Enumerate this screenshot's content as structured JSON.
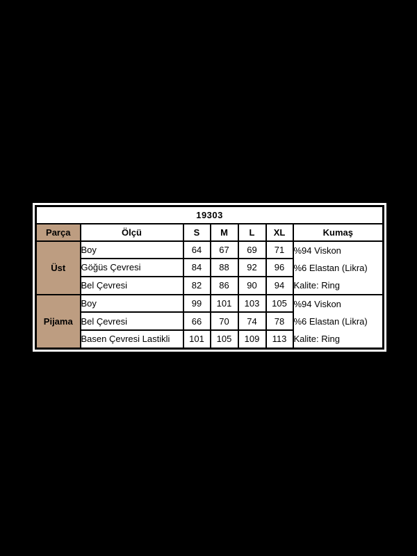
{
  "page": {
    "background": "#000000"
  },
  "frame": {
    "background": "#ffffff"
  },
  "colors": {
    "header_bg": "#bd9d81",
    "cell_bg": "#ffffff",
    "border": "#000000",
    "text": "#000000"
  },
  "chart_data": {
    "type": "table",
    "title": "19303",
    "header": {
      "part": "Parça",
      "measure": "Ölçü",
      "sizes": [
        "S",
        "M",
        "L",
        "XL"
      ],
      "fabric": "Kumaş"
    },
    "sections": [
      {
        "name": "Üst",
        "rows": [
          {
            "label": "Boy",
            "values": [
              "64",
              "67",
              "69",
              "71"
            ]
          },
          {
            "label": "Göğüs Çevresi",
            "values": [
              "84",
              "88",
              "92",
              "96"
            ]
          },
          {
            "label": "Bel Çevresi",
            "values": [
              "82",
              "86",
              "90",
              "94"
            ]
          }
        ],
        "fabric_lines": [
          "%94 Viskon",
          "%6 Elastan (Likra)",
          "Kalite: Ring"
        ]
      },
      {
        "name": "Pijama",
        "rows": [
          {
            "label": "Boy",
            "values": [
              "99",
              "101",
              "103",
              "105"
            ]
          },
          {
            "label": "Bel Çevresi",
            "values": [
              "66",
              "70",
              "74",
              "78"
            ]
          },
          {
            "label": "Basen Çevresi Lastikli",
            "values": [
              "101",
              "105",
              "109",
              "113"
            ]
          }
        ],
        "fabric_lines": [
          "%94 Viskon",
          "%6 Elastan (Likra)",
          "Kalite: Ring"
        ]
      }
    ]
  }
}
